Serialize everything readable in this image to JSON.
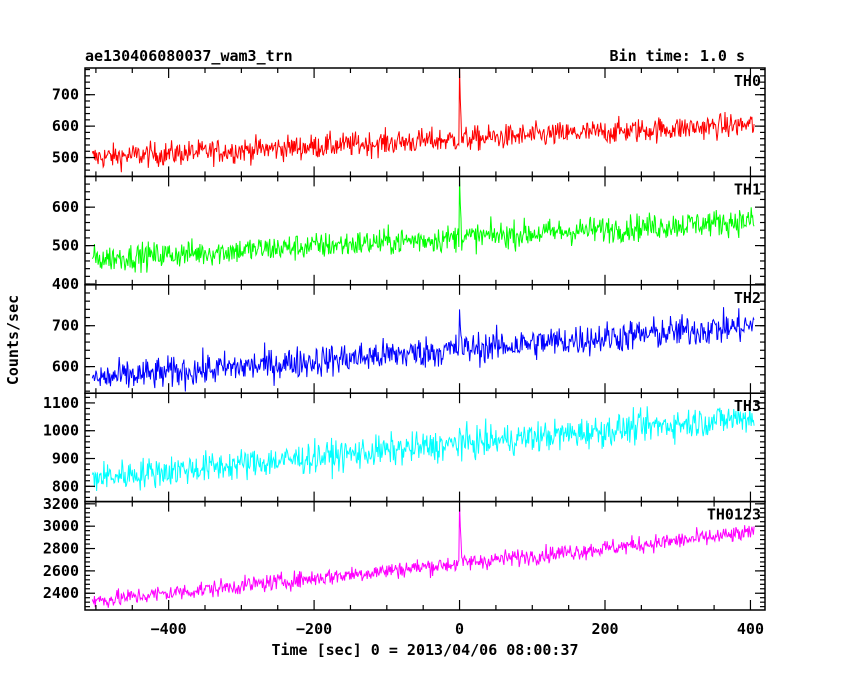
{
  "chart_data": {
    "type": "line",
    "title_left": "ae130406080037_wam3_trn",
    "title_right": "Bin time: 1.0 s",
    "xlabel": "Time [sec] 0 = 2013/04/06 08:00:37",
    "ylabel": "Counts/sec",
    "xlim": [
      -515,
      420
    ],
    "x_ticks": [
      -400,
      -200,
      0,
      200,
      400
    ],
    "x_tick_labels": [
      "−400",
      "−200",
      "0",
      "200",
      "400"
    ],
    "bin_time_s": 1.0,
    "panels": [
      {
        "name": "TH0",
        "color": "#ff0000",
        "ylim": [
          440,
          785
        ],
        "y_ticks": [
          500,
          600,
          700
        ],
        "y_tick_labels": [
          "500",
          "600",
          "700"
        ],
        "trend_start": 500,
        "trend_end": 605,
        "noise": 28,
        "peak_value": 785,
        "post_peak_level": 590
      },
      {
        "name": "TH1",
        "color": "#00ff00",
        "ylim": [
          398,
          680
        ],
        "y_ticks": [
          400,
          500,
          600
        ],
        "y_tick_labels": [
          "400",
          "500",
          "600"
        ],
        "trend_start": 465,
        "trend_end": 565,
        "noise": 25,
        "peak_value": 675,
        "post_peak_level": 545
      },
      {
        "name": "TH2",
        "color": "#0000ff",
        "ylim": [
          535,
          800
        ],
        "y_ticks": [
          600,
          700
        ],
        "y_tick_labels": [
          "600",
          "700"
        ],
        "trend_start": 570,
        "trend_end": 700,
        "noise": 28,
        "peak_value": 740,
        "post_peak_level": 660
      },
      {
        "name": "TH3",
        "color": "#00ffff",
        "ylim": [
          745,
          1135
        ],
        "y_ticks": [
          800,
          900,
          1000,
          1100
        ],
        "y_tick_labels": [
          "800",
          "900",
          "1000",
          "1100"
        ],
        "trend_start": 830,
        "trend_end": 1050,
        "noise": 40,
        "peak_value": 1010,
        "post_peak_level": 975
      },
      {
        "name": "TH0123",
        "color": "#ff00ff",
        "ylim": [
          2250,
          3220
        ],
        "y_ticks": [
          2400,
          2600,
          2800,
          3000,
          3200
        ],
        "y_tick_labels": [
          "2400",
          "2600",
          "2800",
          "3000",
          "3200"
        ],
        "trend_start": 2330,
        "trend_end": 2940,
        "noise": 55,
        "peak_value": 3200,
        "post_peak_level": 2800
      }
    ]
  }
}
